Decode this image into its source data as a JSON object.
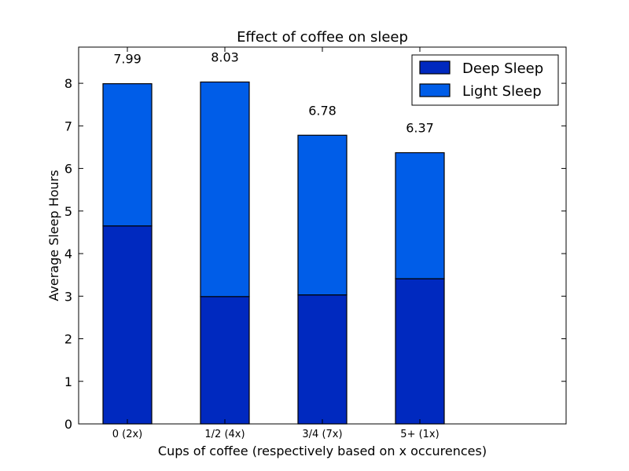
{
  "chart_data": {
    "type": "bar",
    "stacked": true,
    "title": "Effect of coffee on sleep",
    "xlabel": "Cups of coffee (respectively based on x occurences)",
    "ylabel": "Average Sleep Hours",
    "categories": [
      "0 (2x)",
      "1/2 (4x)",
      "3/4 (7x)",
      "5+ (1x)"
    ],
    "series": [
      {
        "name": "Deep Sleep",
        "color": "#0029bf",
        "values": [
          4.65,
          2.99,
          3.03,
          3.41
        ]
      },
      {
        "name": "Light Sleep",
        "color": "#005de8",
        "values": [
          3.34,
          5.04,
          3.75,
          2.96
        ]
      }
    ],
    "totals": [
      "7.99",
      "8.03",
      "6.78",
      "6.37"
    ],
    "ylim": [
      0,
      8.85
    ],
    "yticks": [
      0,
      1,
      2,
      3,
      4,
      5,
      6,
      7,
      8
    ],
    "legend_position": "top-right",
    "grid": false
  }
}
